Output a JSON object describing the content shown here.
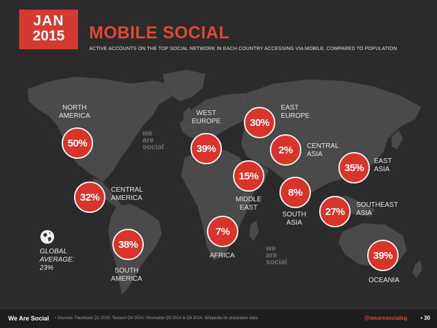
{
  "header": {
    "month": "JAN",
    "year": "2015",
    "title": "MOBILE SOCIAL",
    "subtitle": "ACTIVE ACCOUNTS ON THE TOP SOCIAL NETWORK IN EACH COUNTRY ACCESSING VIA MOBILE, COMPARED TO POPULATION"
  },
  "colors": {
    "accent": "#d43a2f",
    "background": "#2b2b2b",
    "land": "#4a4a4a",
    "footer": "#1e1e1e"
  },
  "watermark": {
    "line1": "we",
    "line2": "are",
    "line3": "social"
  },
  "global": {
    "line1": "GLOBAL",
    "line2": "AVERAGE:",
    "line3": "23%",
    "icon": "globe-icon"
  },
  "regions": [
    {
      "id": "north-america",
      "label1": "NORTH",
      "label2": "AMERICA",
      "value": "50%"
    },
    {
      "id": "central-america",
      "label1": "CENTRAL",
      "label2": "AMERICA",
      "value": "32%"
    },
    {
      "id": "south-america",
      "label1": "SOUTH",
      "label2": "AMERICA",
      "value": "38%"
    },
    {
      "id": "west-europe",
      "label1": "WEST",
      "label2": "EUROPE",
      "value": "39%"
    },
    {
      "id": "east-europe",
      "label1": "EAST",
      "label2": "EUROPE",
      "value": "30%"
    },
    {
      "id": "central-asia",
      "label1": "CENTRAL",
      "label2": "ASIA",
      "value": "2%"
    },
    {
      "id": "middle-east",
      "label1": "MIDDLE",
      "label2": "EAST",
      "value": "15%"
    },
    {
      "id": "south-asia",
      "label1": "SOUTH",
      "label2": "ASIA",
      "value": "8%"
    },
    {
      "id": "africa",
      "label1": "AFRICA",
      "label2": "",
      "value": "7%"
    },
    {
      "id": "east-asia",
      "label1": "EAST",
      "label2": "ASIA",
      "value": "35%"
    },
    {
      "id": "southeast-asia",
      "label1": "SOUTHEAST",
      "label2": "ASIA",
      "value": "27%"
    },
    {
      "id": "oceania",
      "label1": "OCEANIA",
      "label2": "",
      "value": "39%"
    }
  ],
  "footer": {
    "brand": "We Are Social",
    "sources": "•  Sources: Facebook Q1 2015; Tencent Q4 2014; VKontakte Q3 2014 & Q4 2014. Wikipedia for population data.",
    "handle": "@wearesocialsg",
    "page": "• 30"
  }
}
